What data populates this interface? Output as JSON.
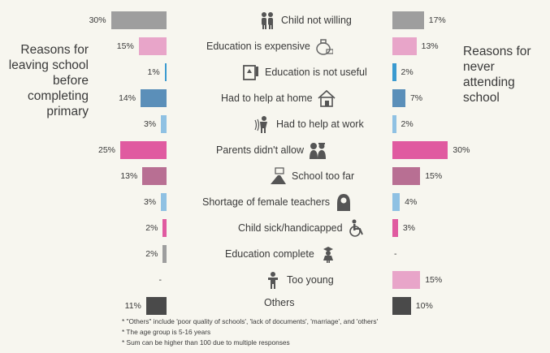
{
  "left_title": "Reasons for leaving school before completing primary",
  "right_title": "Reasons for never attending school",
  "chart_data": {
    "type": "bar",
    "categories": [
      "Child not willing",
      "Education is expensive",
      "Education is not useful",
      "Had to help at home",
      "Had to help at work",
      "Parents didn't allow",
      "School too far",
      "Shortage of female teachers",
      "Child sick/handicapped",
      "Education complete",
      "Too young",
      "Others"
    ],
    "series": [
      {
        "values": [
          30,
          15,
          1,
          14,
          3,
          25,
          13,
          3,
          2,
          2,
          null,
          11
        ],
        "labels": [
          "30%",
          "15%",
          "1%",
          "14%",
          "3%",
          "25%",
          "13%",
          "3%",
          "2%",
          "2%",
          "-",
          "11%"
        ]
      },
      {
        "values": [
          17,
          13,
          2,
          7,
          2,
          30,
          15,
          4,
          3,
          null,
          15,
          10
        ],
        "labels": [
          "17%",
          "13%",
          "2%",
          "7%",
          "2%",
          "30%",
          "15%",
          "4%",
          "3%",
          "-",
          "15%",
          "10%"
        ]
      }
    ],
    "colors": [
      "#9e9e9e",
      "#e8a5c9",
      "#3a9ad0",
      "#5b8fb9",
      "#8fc1e3",
      "#e05aa0",
      "#b86f93",
      "#8fc1e3",
      "#e05aa0",
      "#9e9e9e",
      "#e8a5c9",
      "#4a4a4a"
    ],
    "icons": [
      "children-icon",
      "money-bag-icon",
      "book-broken-icon",
      "house-icon",
      "worker-icon",
      "parents-icon",
      "road-school-icon",
      "female-teacher-icon",
      "wheelchair-icon",
      "graduate-girl-icon",
      "child-icon",
      ""
    ]
  },
  "notes": [
    "* \"Others\" include 'poor quality of schools', 'lack of documents', 'marriage', and 'others'",
    "* The age group is 5-16 years",
    "* Sum can be higher than 100 due to multiple responses"
  ]
}
